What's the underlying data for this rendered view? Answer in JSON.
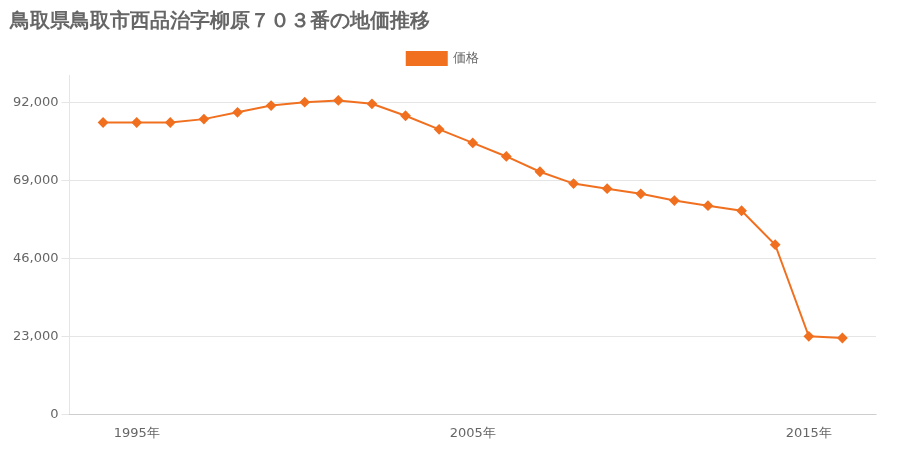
{
  "chart_data": {
    "type": "line",
    "title": "鳥取県鳥取市西品治字柳原７０３番の地価推移",
    "x": [
      1994,
      1995,
      1996,
      1997,
      1998,
      1999,
      2000,
      2001,
      2002,
      2003,
      2004,
      2005,
      2006,
      2007,
      2008,
      2009,
      2010,
      2011,
      2012,
      2013,
      2014,
      2015,
      2016
    ],
    "series": [
      {
        "name": "価格",
        "color": "#f07020",
        "marker": "diamond",
        "line_style": "solid",
        "values": [
          86000,
          86000,
          86000,
          87000,
          89000,
          91000,
          92000,
          92500,
          91500,
          88000,
          84000,
          80000,
          76000,
          71500,
          68000,
          66500,
          65000,
          63000,
          61500,
          60000,
          50000,
          23000,
          22500
        ]
      }
    ],
    "xlim": [
      1993,
      2017
    ],
    "xticks": [
      {
        "value": 1995,
        "label": "1995年"
      },
      {
        "value": 2005,
        "label": "2005年"
      },
      {
        "value": 2015,
        "label": "2015年"
      }
    ],
    "ylim": [
      0,
      100000
    ],
    "yticks": [
      0,
      {
        "value": 23000,
        "label": "23,000"
      },
      {
        "value": 46000,
        "label": "46,000"
      },
      {
        "value": 69000,
        "label": "69,000"
      },
      {
        "value": 92000,
        "label": "92,000"
      }
    ],
    "grid": "y",
    "legend": "top"
  }
}
